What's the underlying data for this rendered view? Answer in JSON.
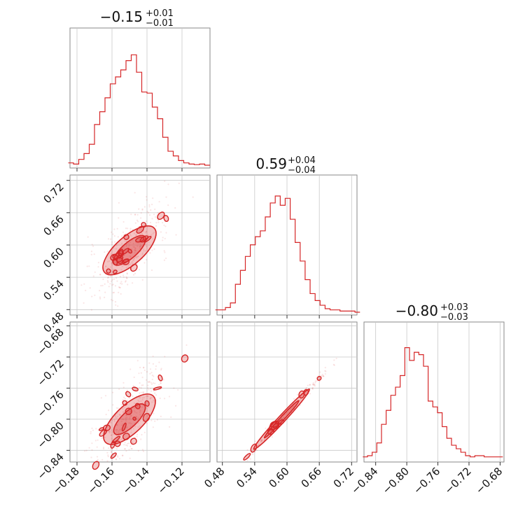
{
  "chart_data": {
    "type": "corner",
    "color": "#d62728",
    "parameters": [
      {
        "title_main": "−0.15",
        "title_plus": "+0.01",
        "title_minus": "−0.01",
        "median": -0.15,
        "sigma": 0.01,
        "range": [
          -0.184,
          -0.104
        ],
        "ticks": [
          -0.18,
          -0.16,
          -0.14,
          -0.12
        ],
        "tick_labels": [
          "−0.18",
          "−0.16",
          "−0.14",
          "−0.12"
        ]
      },
      {
        "title_main": "0.59",
        "title_plus": "+0.04",
        "title_minus": "−0.04",
        "median": 0.59,
        "sigma": 0.04,
        "range": [
          0.47,
          0.73
        ],
        "ticks": [
          0.48,
          0.54,
          0.6,
          0.66,
          0.72
        ],
        "tick_labels": [
          "0.48",
          "0.54",
          "0.60",
          "0.66",
          "0.72"
        ]
      },
      {
        "title_main": "−0.80",
        "title_plus": "+0.03",
        "title_minus": "−0.03",
        "median": -0.8,
        "sigma": 0.03,
        "range": [
          -0.855,
          -0.675
        ],
        "ticks": [
          -0.84,
          -0.8,
          -0.76,
          -0.72,
          -0.68
        ],
        "tick_labels": [
          "−0.84",
          "−0.80",
          "−0.76",
          "−0.72",
          "−0.68"
        ]
      }
    ],
    "histograms": [
      {
        "x": [
          -0.1835,
          -0.1805,
          -0.1775,
          -0.1745,
          -0.1715,
          -0.1685,
          -0.1655,
          -0.1625,
          -0.1595,
          -0.1565,
          -0.1535,
          -0.1505,
          -0.1475,
          -0.1445,
          -0.1415,
          -0.1385,
          -0.1355,
          -0.1325,
          -0.1295,
          -0.1265,
          -0.1235,
          -0.1205,
          -0.1175,
          -0.1145,
          -0.1115,
          -0.1085,
          -0.1055
        ],
        "counts": [
          0.02,
          0.01,
          0.05,
          0.1,
          0.18,
          0.35,
          0.46,
          0.58,
          0.7,
          0.76,
          0.82,
          0.9,
          0.95,
          0.8,
          0.63,
          0.62,
          0.5,
          0.4,
          0.24,
          0.12,
          0.08,
          0.04,
          0.02,
          0.01,
          0.005,
          0.01,
          0.0
        ]
      },
      {
        "x": [
          0.4717,
          0.481,
          0.4902,
          0.4995,
          0.5088,
          0.518,
          0.5272,
          0.5365,
          0.5457,
          0.555,
          0.5643,
          0.5735,
          0.5828,
          0.592,
          0.6013,
          0.6105,
          0.6198,
          0.629,
          0.6383,
          0.6476,
          0.6568,
          0.6661,
          0.6753,
          0.6846,
          0.6938,
          0.7031,
          0.7124,
          0.7216,
          0.7309
        ],
        "counts": [
          0.02,
          0.02,
          0.04,
          0.08,
          0.24,
          0.36,
          0.48,
          0.58,
          0.65,
          0.7,
          0.82,
          0.94,
          1.0,
          0.92,
          0.98,
          0.8,
          0.6,
          0.44,
          0.28,
          0.16,
          0.1,
          0.06,
          0.03,
          0.02,
          0.02,
          0.01,
          0.01,
          0.01,
          0.0
        ]
      },
      {
        "x": [
          -0.8535,
          -0.8475,
          -0.8415,
          -0.8355,
          -0.8295,
          -0.8235,
          -0.8175,
          -0.8115,
          -0.8055,
          -0.7995,
          -0.7935,
          -0.7875,
          -0.7815,
          -0.7755,
          -0.7695,
          -0.7635,
          -0.7575,
          -0.7515,
          -0.7455,
          -0.7395,
          -0.7335,
          -0.7275,
          -0.7215,
          -0.7155,
          -0.7095,
          -0.7035,
          -0.6975,
          -0.6915,
          -0.6855,
          -0.6795
        ],
        "counts": [
          0.02,
          0.03,
          0.06,
          0.14,
          0.3,
          0.42,
          0.55,
          0.62,
          0.72,
          0.96,
          0.85,
          0.92,
          0.9,
          0.8,
          0.5,
          0.45,
          0.4,
          0.28,
          0.18,
          0.12,
          0.09,
          0.06,
          0.03,
          0.02,
          0.03,
          0.03,
          0.02,
          0.02,
          0.02,
          0.02
        ]
      }
    ]
  }
}
